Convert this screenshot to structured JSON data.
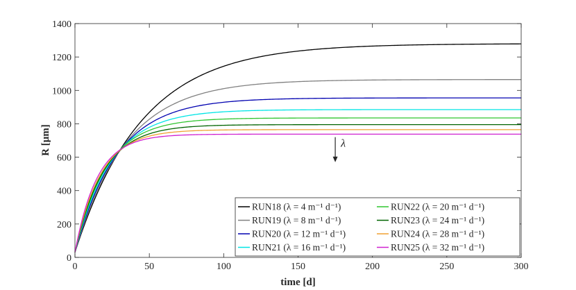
{
  "chart_data": {
    "type": "line",
    "title": "",
    "xlabel": "time [d]",
    "ylabel": "R [μm]",
    "xlim": [
      0,
      300
    ],
    "ylim": [
      0,
      1400
    ],
    "xticks": [
      0,
      50,
      100,
      150,
      200,
      250,
      300
    ],
    "yticks": [
      0,
      200,
      400,
      600,
      800,
      1000,
      1200,
      1400
    ],
    "grid": false,
    "legend_position": "bottom-right",
    "annotation": {
      "text": "λ",
      "arrow": "down",
      "x": 175,
      "y_from": 720,
      "y_to": 570
    },
    "series": [
      {
        "name": "RUN18",
        "legend_label": "RUN18 (λ = 4 m⁻¹ d⁻¹)",
        "color": "#000000",
        "r0": 30,
        "rinf": 1280,
        "tau": 45
      },
      {
        "name": "RUN19",
        "legend_label": "RUN19 (λ = 8 m⁻¹ d⁻¹)",
        "color": "#808080",
        "r0": 30,
        "rinf": 1065,
        "tau": 34
      },
      {
        "name": "RUN20",
        "legend_label": "RUN20 (λ = 12 m⁻¹ d⁻¹)",
        "color": "#0000b0",
        "r0": 30,
        "rinf": 955,
        "tau": 28
      },
      {
        "name": "RUN21",
        "legend_label": "RUN21 (λ = 16 m⁻¹ d⁻¹)",
        "color": "#00e5e5",
        "r0": 30,
        "rinf": 885,
        "tau": 24
      },
      {
        "name": "RUN22",
        "legend_label": "RUN22 (λ = 20 m⁻¹ d⁻¹)",
        "color": "#2fc52f",
        "r0": 30,
        "rinf": 835,
        "tau": 21
      },
      {
        "name": "RUN23",
        "legend_label": "RUN23 (λ = 24 m⁻¹ d⁻¹)",
        "color": "#006400",
        "r0": 30,
        "rinf": 795,
        "tau": 19
      },
      {
        "name": "RUN24",
        "legend_label": "RUN24 (λ = 28 m⁻¹ d⁻¹)",
        "color": "#f0a030",
        "r0": 30,
        "rinf": 765,
        "tau": 17
      },
      {
        "name": "RUN25",
        "legend_label": "RUN25 (λ = 32 m⁻¹ d⁻¹)",
        "color": "#d020d0",
        "r0": 30,
        "rinf": 738,
        "tau": 15
      }
    ]
  }
}
